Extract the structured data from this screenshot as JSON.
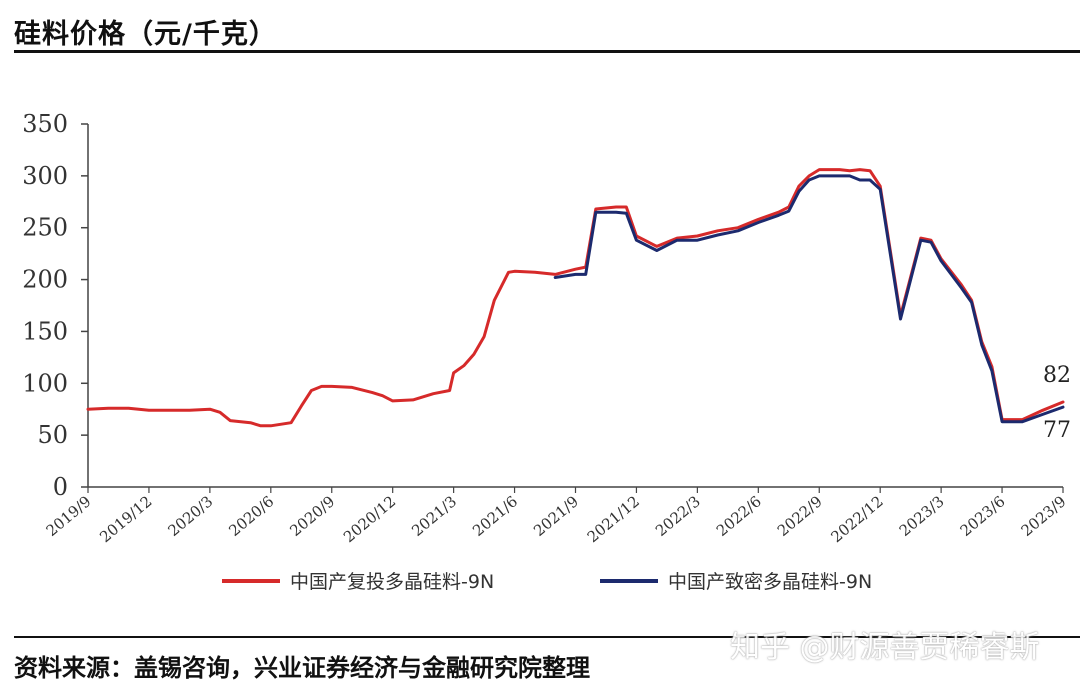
{
  "title": "硅料价格（元/千克）",
  "source": "资料来源：盖锡咨询，兴业证券经济与金融研究院整理",
  "watermark": "知乎 @财源善贾稀睿斯",
  "chart_data": {
    "type": "line",
    "title": "硅料价格（元/千克）",
    "xlabel": "",
    "ylabel": "",
    "ylim": [
      0,
      350
    ],
    "yticks": [
      0,
      50,
      100,
      150,
      200,
      250,
      300,
      350
    ],
    "xlim": [
      "2019/9",
      "2023/9"
    ],
    "xticks": [
      "2019/9",
      "2019/12",
      "2020/3",
      "2020/6",
      "2020/9",
      "2020/12",
      "2021/3",
      "2021/6",
      "2021/9",
      "2021/12",
      "2022/3",
      "2022/6",
      "2022/9",
      "2022/12",
      "2023/3",
      "2023/6",
      "2023/9"
    ],
    "grid": false,
    "legend_position": "bottom",
    "series": [
      {
        "name": "中国产复投多晶硅料-9N",
        "color": "#d62a2a",
        "points": [
          [
            "2019/9",
            75
          ],
          [
            "2019/10",
            76
          ],
          [
            "2019/11",
            76
          ],
          [
            "2019/12",
            74
          ],
          [
            "2020/1",
            74
          ],
          [
            "2020/2",
            74
          ],
          [
            "2020/3",
            75
          ],
          [
            "2020/3.5",
            72
          ],
          [
            "2020/4",
            64
          ],
          [
            "2020/5",
            62
          ],
          [
            "2020/5.5",
            59
          ],
          [
            "2020/6",
            59
          ],
          [
            "2020/7",
            62
          ],
          [
            "2020/7.5",
            78
          ],
          [
            "2020/8",
            93
          ],
          [
            "2020/8.5",
            97
          ],
          [
            "2020/9",
            97
          ],
          [
            "2020/10",
            96
          ],
          [
            "2020/11",
            91
          ],
          [
            "2020/11.5",
            88
          ],
          [
            "2020/12",
            83
          ],
          [
            "2021/1",
            84
          ],
          [
            "2021/2",
            90
          ],
          [
            "2021/2.8",
            93
          ],
          [
            "2021/3",
            110
          ],
          [
            "2021/3.5",
            117
          ],
          [
            "2021/4",
            128
          ],
          [
            "2021/4.5",
            145
          ],
          [
            "2021/5",
            180
          ],
          [
            "2021/5.7",
            207
          ],
          [
            "2021/6",
            208
          ],
          [
            "2021/7",
            207
          ],
          [
            "2021/8",
            205
          ],
          [
            "2021/9",
            210
          ],
          [
            "2021/9.5",
            212
          ],
          [
            "2021/10",
            268
          ],
          [
            "2021/11",
            270
          ],
          [
            "2021/11.5",
            270
          ],
          [
            "2021/12",
            242
          ],
          [
            "2022/1",
            232
          ],
          [
            "2022/2",
            240
          ],
          [
            "2022/3",
            242
          ],
          [
            "2022/4",
            247
          ],
          [
            "2022/5",
            250
          ],
          [
            "2022/6",
            258
          ],
          [
            "2022/7",
            265
          ],
          [
            "2022/7.5",
            270
          ],
          [
            "2022/8",
            290
          ],
          [
            "2022/8.5",
            300
          ],
          [
            "2022/9",
            306
          ],
          [
            "2022/10",
            306
          ],
          [
            "2022/10.5",
            305
          ],
          [
            "2022/11",
            306
          ],
          [
            "2022/11.5",
            305
          ],
          [
            "2022/12",
            290
          ],
          [
            "2023/1",
            165
          ],
          [
            "2023/2",
            240
          ],
          [
            "2023/2.5",
            238
          ],
          [
            "2023/3",
            220
          ],
          [
            "2023/4",
            195
          ],
          [
            "2023/4.5",
            180
          ],
          [
            "2023/5",
            140
          ],
          [
            "2023/5.5",
            116
          ],
          [
            "2023/6",
            65
          ],
          [
            "2023/7",
            65
          ],
          [
            "2023/8",
            74
          ],
          [
            "2023/9",
            82
          ]
        ]
      },
      {
        "name": "中国产致密多晶硅料-9N",
        "color": "#1c2a6e",
        "points": [
          [
            "2021/8",
            202
          ],
          [
            "2021/9",
            205
          ],
          [
            "2021/9.5",
            205
          ],
          [
            "2021/10",
            265
          ],
          [
            "2021/11",
            265
          ],
          [
            "2021/11.5",
            264
          ],
          [
            "2021/12",
            238
          ],
          [
            "2022/1",
            228
          ],
          [
            "2022/2",
            238
          ],
          [
            "2022/3",
            238
          ],
          [
            "2022/4",
            243
          ],
          [
            "2022/5",
            247
          ],
          [
            "2022/6",
            255
          ],
          [
            "2022/7",
            262
          ],
          [
            "2022/7.5",
            266
          ],
          [
            "2022/8",
            285
          ],
          [
            "2022/8.5",
            296
          ],
          [
            "2022/9",
            300
          ],
          [
            "2022/10",
            300
          ],
          [
            "2022/10.5",
            300
          ],
          [
            "2022/11",
            296
          ],
          [
            "2022/11.5",
            296
          ],
          [
            "2022/12",
            287
          ],
          [
            "2023/1",
            162
          ],
          [
            "2023/2",
            238
          ],
          [
            "2023/2.5",
            236
          ],
          [
            "2023/3",
            218
          ],
          [
            "2023/4",
            192
          ],
          [
            "2023/4.5",
            178
          ],
          [
            "2023/5",
            137
          ],
          [
            "2023/5.5",
            112
          ],
          [
            "2023/6",
            63
          ],
          [
            "2023/7",
            63
          ],
          [
            "2023/8",
            70
          ],
          [
            "2023/9",
            77
          ]
        ]
      }
    ],
    "annotations": [
      {
        "text": "82",
        "series": 0,
        "at": "end"
      },
      {
        "text": "77",
        "series": 1,
        "at": "end"
      }
    ]
  }
}
